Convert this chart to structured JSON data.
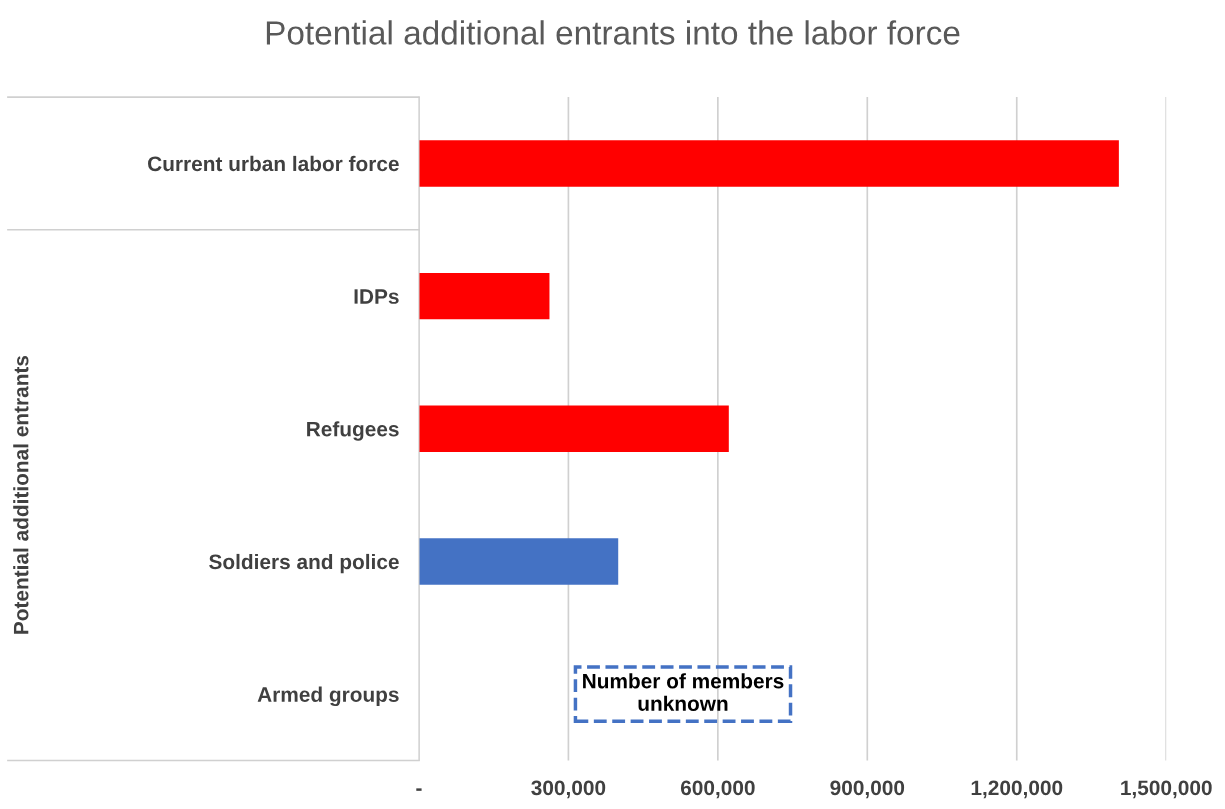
{
  "chart_data": {
    "type": "bar",
    "orientation": "horizontal",
    "title": "Potential additional entrants into the labor force",
    "categories": [
      "Current urban labor force",
      "IDPs",
      "Refugees",
      "Soldiers and police",
      "Armed groups"
    ],
    "values": [
      1405000,
      262000,
      622000,
      400000,
      null
    ],
    "colors": [
      "#ff0000",
      "#ff0000",
      "#ff0000",
      "#4472c4",
      "#4472c4"
    ],
    "xlim": [
      0,
      1500000
    ],
    "xticks": [
      {
        "value": 0,
        "label": "-"
      },
      {
        "value": 300000,
        "label": "300,000"
      },
      {
        "value": 600000,
        "label": "600,000"
      },
      {
        "value": 900000,
        "label": "900,000"
      },
      {
        "value": 1200000,
        "label": "1,200,000"
      },
      {
        "value": 1500000,
        "label": "1,500,000"
      }
    ],
    "grid": "x",
    "annotations": [
      "Potential additional entrants",
      "Number of members unknown"
    ]
  }
}
